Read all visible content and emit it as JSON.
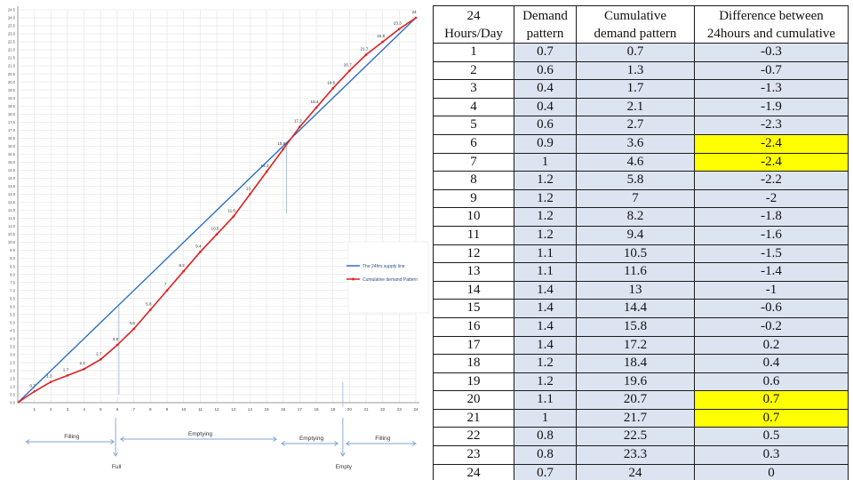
{
  "chart_data": {
    "type": "line",
    "series": [
      {
        "name": "The 24hrs supply line",
        "color": "#2e6fc9",
        "x": [
          0,
          24
        ],
        "y": [
          0,
          24
        ]
      },
      {
        "name": "Cumulative demand Pattern",
        "color": "#e02020",
        "x": [
          0,
          1,
          2,
          3,
          4,
          5,
          6,
          7,
          8,
          9,
          10,
          11,
          12,
          13,
          14,
          15,
          16,
          17,
          18,
          19,
          20,
          21,
          22,
          23,
          24
        ],
        "y": [
          0,
          0.7,
          1.3,
          1.7,
          2.1,
          2.7,
          3.6,
          4.6,
          5.8,
          7,
          8.2,
          9.4,
          10.5,
          11.6,
          13,
          14.4,
          15.8,
          17.2,
          18.4,
          19.6,
          20.7,
          21.7,
          22.5,
          23.3,
          24
        ]
      }
    ],
    "data_labels": [
      "0.7",
      "1.3",
      "1.7",
      "2.1",
      "2.7",
      "3.6",
      "4.6",
      "5.8",
      "7",
      "8.2",
      "9.4",
      "10.5",
      "11.6",
      "13",
      "14.4",
      "15.8",
      "17.2",
      "18.4",
      "19.6",
      "20.7",
      "21.7",
      "22.5",
      "23.3",
      "24"
    ],
    "x_ticks": [
      "1",
      "2",
      "3",
      "4",
      "5",
      "6",
      "7",
      "8",
      "9",
      "10",
      "11",
      "12",
      "13",
      "14",
      "15",
      "16",
      "17",
      "18",
      "19",
      "20",
      "21",
      "22",
      "23",
      "24"
    ],
    "xlim": [
      0,
      24
    ],
    "ylim": [
      0,
      24.5
    ],
    "grid": true,
    "legend_position": "right",
    "annotations": {
      "phases": [
        "Filling",
        "Emptying",
        "Emptying",
        "Filling"
      ],
      "full_label": "Full",
      "empty_label": "Empty"
    }
  },
  "table": {
    "headers": [
      [
        "24",
        "Hours/Day"
      ],
      [
        "Demand",
        "pattern"
      ],
      [
        "Cumulative",
        "demand pattern"
      ],
      [
        "Difference between",
        "24hours and cumulative"
      ]
    ],
    "rows": [
      {
        "hour": "1",
        "demand": "0.7",
        "cumulative": "0.7",
        "difference": "-0.3"
      },
      {
        "hour": "2",
        "demand": "0.6",
        "cumulative": "1.3",
        "difference": "-0.7"
      },
      {
        "hour": "3",
        "demand": "0.4",
        "cumulative": "1.7",
        "difference": "-1.3"
      },
      {
        "hour": "4",
        "demand": "0.4",
        "cumulative": "2.1",
        "difference": "-1.9"
      },
      {
        "hour": "5",
        "demand": "0.6",
        "cumulative": "2.7",
        "difference": "-2.3"
      },
      {
        "hour": "6",
        "demand": "0.9",
        "cumulative": "3.6",
        "difference": "-2.4",
        "highlight": true
      },
      {
        "hour": "7",
        "demand": "1",
        "cumulative": "4.6",
        "difference": "-2.4",
        "highlight": true
      },
      {
        "hour": "8",
        "demand": "1.2",
        "cumulative": "5.8",
        "difference": "-2.2"
      },
      {
        "hour": "9",
        "demand": "1.2",
        "cumulative": "7",
        "difference": "-2"
      },
      {
        "hour": "10",
        "demand": "1.2",
        "cumulative": "8.2",
        "difference": "-1.8"
      },
      {
        "hour": "11",
        "demand": "1.2",
        "cumulative": "9.4",
        "difference": "-1.6"
      },
      {
        "hour": "12",
        "demand": "1.1",
        "cumulative": "10.5",
        "difference": "-1.5"
      },
      {
        "hour": "13",
        "demand": "1.1",
        "cumulative": "11.6",
        "difference": "-1.4"
      },
      {
        "hour": "14",
        "demand": "1.4",
        "cumulative": "13",
        "difference": "-1"
      },
      {
        "hour": "15",
        "demand": "1.4",
        "cumulative": "14.4",
        "difference": "-0.6"
      },
      {
        "hour": "16",
        "demand": "1.4",
        "cumulative": "15.8",
        "difference": "-0.2"
      },
      {
        "hour": "17",
        "demand": "1.4",
        "cumulative": "17.2",
        "difference": "0.2"
      },
      {
        "hour": "18",
        "demand": "1.2",
        "cumulative": "18.4",
        "difference": "0.4"
      },
      {
        "hour": "19",
        "demand": "1.2",
        "cumulative": "19.6",
        "difference": "0.6"
      },
      {
        "hour": "20",
        "demand": "1.1",
        "cumulative": "20.7",
        "difference": "0.7",
        "highlight": true
      },
      {
        "hour": "21",
        "demand": "1",
        "cumulative": "21.7",
        "difference": "0.7",
        "highlight": true
      },
      {
        "hour": "22",
        "demand": "0.8",
        "cumulative": "22.5",
        "difference": "0.5"
      },
      {
        "hour": "23",
        "demand": "0.8",
        "cumulative": "23.3",
        "difference": "0.3"
      },
      {
        "hour": "24",
        "demand": "0.7",
        "cumulative": "24",
        "difference": "0"
      }
    ],
    "highlight_color": "#ffff00",
    "row_color": "#dde4f1"
  }
}
